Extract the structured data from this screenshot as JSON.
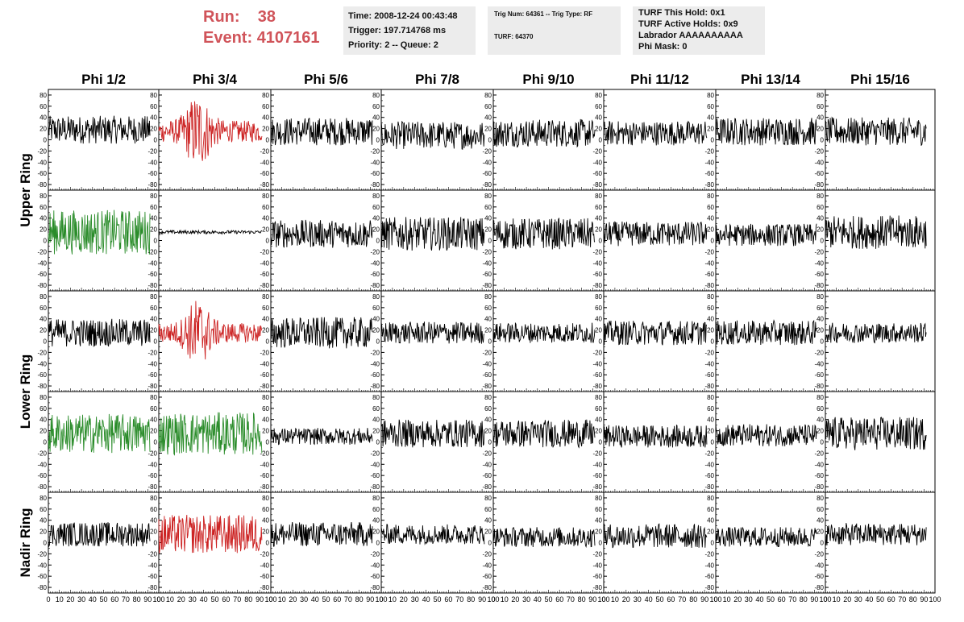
{
  "header": {
    "run_label": "Run:",
    "run_value": "38",
    "event_label": "Event:",
    "event_value": "4107161",
    "time_line": "Time: 2008-12-24 00:43:48",
    "trigger_line": "Trigger: 197.714768 ms",
    "priority_line": "Priority: 2 -- Queue: 2",
    "trig_line": "Trig Num: 64361 -- Trig Type: RF",
    "turf_line": "TURF: 64370",
    "turf_hold_line": "TURF This Hold: 0x1",
    "turf_active_line": "TURF Active Holds: 0x9",
    "labrador_line": "Labrador AAAAAAAAAA",
    "phi_mask_line": "Phi Mask: 0"
  },
  "colors": {
    "title_red": "#d0545a",
    "trace_black": "#000000",
    "trace_red": "#cc2222",
    "trace_green": "#2a8c2a",
    "info_bg": "#ececec"
  },
  "chart_data": {
    "type": "line",
    "columns": [
      "Phi 1/2",
      "Phi 3/4",
      "Phi 5/6",
      "Phi 7/8",
      "Phi 9/10",
      "Phi 11/12",
      "Phi 13/14",
      "Phi 15/16"
    ],
    "rows": [
      "Upper Ring",
      "Upper Ring",
      "Lower Ring",
      "Lower Ring",
      "Nadir Ring"
    ],
    "row_label_groups": [
      {
        "label": "Upper Ring",
        "rows": [
          0,
          1
        ]
      },
      {
        "label": "Lower Ring",
        "rows": [
          2,
          3
        ]
      },
      {
        "label": "Nadir Ring",
        "rows": [
          4
        ]
      }
    ],
    "xlim": [
      0,
      100
    ],
    "ylim": [
      -90,
      90
    ],
    "x_ticks": [
      "0",
      "10",
      "20",
      "30",
      "40",
      "50",
      "60",
      "70",
      "80",
      "90",
      "100"
    ],
    "y_ticks": [
      "80",
      "60",
      "40",
      "20",
      "0",
      "-20",
      "-40",
      "-60",
      "-80"
    ],
    "y_tick_values": [
      80,
      60,
      40,
      20,
      0,
      -20,
      -40,
      -60,
      -80
    ],
    "x_sample_range": [
      0,
      92
    ],
    "grid": false,
    "legend": "none",
    "trace_colors": [
      [
        "black",
        "red",
        "black",
        "black",
        "black",
        "black",
        "black",
        "black"
      ],
      [
        "green",
        "black",
        "black",
        "black",
        "black",
        "black",
        "black",
        "black"
      ],
      [
        "black",
        "red",
        "black",
        "black",
        "black",
        "black",
        "black",
        "black"
      ],
      [
        "green",
        "green",
        "black",
        "black",
        "black",
        "black",
        "black",
        "black"
      ],
      [
        "black",
        "red",
        "black",
        "black",
        "black",
        "black",
        "black",
        "black"
      ]
    ],
    "trace_baseline": [
      [
        18,
        15,
        15,
        8,
        12,
        12,
        15,
        15
      ],
      [
        15,
        15,
        12,
        12,
        12,
        12,
        10,
        15
      ],
      [
        15,
        15,
        15,
        15,
        15,
        15,
        15,
        15
      ],
      [
        15,
        15,
        10,
        15,
        15,
        10,
        12,
        15
      ],
      [
        15,
        15,
        15,
        15,
        10,
        12,
        10,
        15
      ]
    ],
    "trace_amplitude": [
      [
        25,
        55,
        25,
        25,
        25,
        22,
        25,
        25
      ],
      [
        40,
        3,
        25,
        30,
        28,
        22,
        20,
        30
      ],
      [
        25,
        50,
        28,
        20,
        18,
        22,
        22,
        18
      ],
      [
        35,
        38,
        15,
        25,
        25,
        20,
        20,
        30
      ],
      [
        22,
        35,
        22,
        18,
        18,
        22,
        18,
        20
      ]
    ]
  }
}
